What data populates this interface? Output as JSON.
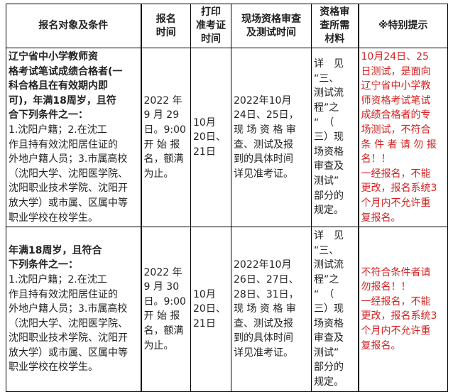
{
  "headers": [
    "报名对象及条件",
    "报名\n时间",
    "打印\n准考证\n时间",
    "现场资格审查\n及测试时间",
    "资格审\n查所需\n材料",
    "※特别提示"
  ],
  "rows": [
    {
      "condition_bold": "        辽宁省中小学教师资\n格考试笔试成绩合格者(一\n科合格且在有效期内即\n可)，年满18周岁，且符\n合下列条件之一：",
      "condition_normal": "        1.沈阳户籍；2.在沈工\n作且持有效沈阳居住证的\n外地户籍人员；3.市属高校\n（沈阳大学、沈阳医学院、\n沈阳职业技术学院、沈阳开\n放大学）或市属、区属中等\n职业学校在校学生。",
      "signup_time": "2022 年\n9 月 29\n日。9:00\n开 始 报\n名，额满\n为止。",
      "print_time": "10月\n20日、\n21日",
      "review_time": "2022年10月\n24日、25日，\n现 场 资 格 审\n查、测试及报\n到的具体时间\n详见准考证。",
      "materials": "详　见\n“三、\n测试流\n程”之\n“　（\n三）现\n场资格\n审查及\n测试”\n部分的\n规定。",
      "notice": "10月24日、25\n日测试，是面向\n辽宁省中小学教\n师资格考试笔试\n成绩合格者的专\n场测试，不符合\n条 件 者 请 勿 报\n名！！\n一经报名，不能\n更改，报名系统3\n个月内不允许重\n复报名。"
    },
    {
      "condition_bold": "        年满18周岁，且符合\n下列条件之一：",
      "condition_normal": "        1.沈阳户籍；2.在沈工\n作且持有效沈阳居住证的\n外地户籍人员；3.市属高校\n（沈阳大学、沈阳医学院、\n沈阳职业技术学院、沈阳开\n放大学）或市属、区属中等\n职业学校在校学生。",
      "signup_time": "2022 年\n9 月 30\n日。9:00\n开 始 报\n名，额满\n为止。",
      "print_time": "10月\n20日、\n21日",
      "review_time": "2022年10月\n26日、27日、\n28日、31日，\n现 场 资 格 审\n查、测试及报\n到的具体时间\n详见准考证。",
      "materials": "详　见\n“三、\n测试流\n程”之\n“　（\n三）现\n场资格\n审查及\n测试”\n部分的\n规定。",
      "notice": "不符合条件者请\n勿报名！！\n一经报名，不能\n更改，报名系统3\n个月内不允许重\n复报名。"
    }
  ],
  "colors": {
    "notice_text": "#d42020",
    "border": "#000000"
  }
}
